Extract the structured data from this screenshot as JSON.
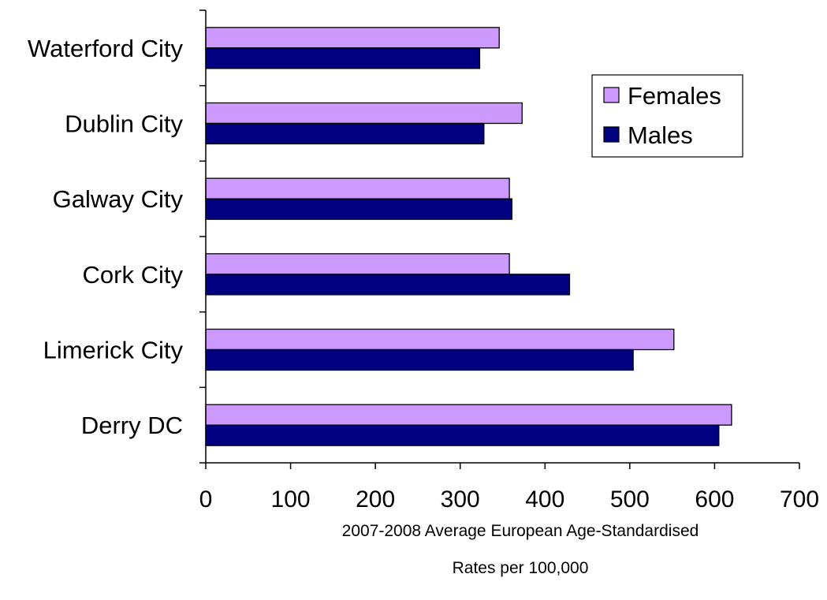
{
  "chart_data": {
    "type": "bar",
    "orientation": "horizontal",
    "categories": [
      "Waterford City",
      "Dublin City",
      "Galway City",
      "Cork City",
      "Limerick City",
      "Derry DC"
    ],
    "series": [
      {
        "name": "Females",
        "color": "#cc99ff",
        "values": [
          346,
          373,
          358,
          358,
          552,
          620
        ]
      },
      {
        "name": "Males",
        "color": "#000080",
        "values": [
          323,
          328,
          361,
          429,
          504,
          605
        ]
      }
    ],
    "x_ticks": [
      "0",
      "100",
      "200",
      "300",
      "400",
      "500",
      "600",
      "700"
    ],
    "xlabel_lines": [
      "2007-2008 Average European Age-Standardised",
      "Rates per 100,000"
    ],
    "xlim": [
      0,
      700
    ],
    "grid": false,
    "legend": {
      "position": "top-right",
      "entries": [
        "Females",
        "Males"
      ]
    }
  }
}
